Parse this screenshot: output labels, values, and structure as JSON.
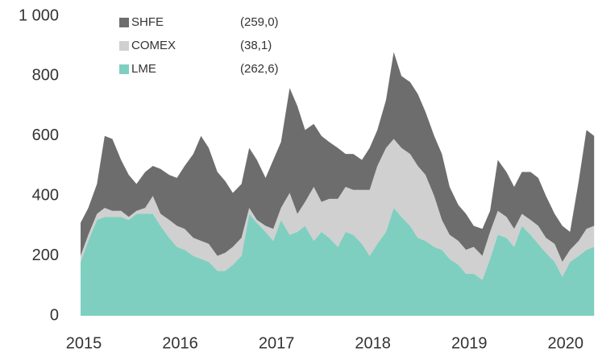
{
  "chart_data": {
    "type": "stacked_area",
    "x": [
      2015,
      2015.08,
      2015.17,
      2015.25,
      2015.33,
      2015.42,
      2015.5,
      2015.58,
      2015.67,
      2015.75,
      2015.83,
      2015.92,
      2016,
      2016.08,
      2016.17,
      2016.25,
      2016.33,
      2016.42,
      2016.5,
      2016.58,
      2016.67,
      2016.75,
      2016.83,
      2016.92,
      2017,
      2017.08,
      2017.17,
      2017.25,
      2017.33,
      2017.42,
      2017.5,
      2017.58,
      2017.67,
      2017.75,
      2017.83,
      2017.92,
      2018,
      2018.08,
      2018.17,
      2018.25,
      2018.33,
      2018.42,
      2018.5,
      2018.58,
      2018.67,
      2018.75,
      2018.83,
      2018.92,
      2019,
      2019.08,
      2019.17,
      2019.25,
      2019.33,
      2019.42,
      2019.5,
      2019.58,
      2019.67,
      2019.75,
      2019.83,
      2019.92,
      2020,
      2020.08,
      2020.17,
      2020.25,
      2020.33
    ],
    "xlim": [
      2015,
      2020.37
    ],
    "xticks": [
      2015,
      2016,
      2017,
      2018,
      2019,
      2020
    ],
    "ylim": [
      0,
      1000
    ],
    "yticks": [
      0,
      200,
      400,
      600,
      800,
      {
        "value": 1000,
        "label": "1 000"
      }
    ],
    "grid": false,
    "series": [
      {
        "name": "LME",
        "legend_value": "(262,6)",
        "color": "#7fcfc0",
        "values": [
          180,
          250,
          320,
          330,
          330,
          330,
          320,
          340,
          340,
          340,
          300,
          260,
          230,
          220,
          200,
          190,
          180,
          150,
          150,
          170,
          200,
          340,
          310,
          280,
          250,
          320,
          270,
          280,
          300,
          250,
          280,
          260,
          230,
          280,
          270,
          240,
          200,
          240,
          280,
          360,
          330,
          300,
          260,
          250,
          230,
          220,
          190,
          170,
          140,
          140,
          120,
          190,
          270,
          260,
          230,
          300,
          270,
          240,
          210,
          180,
          130,
          180,
          200,
          220,
          230
        ]
      },
      {
        "name": "COMEX",
        "legend_value": "(38,1)",
        "color": "#d0d0d0",
        "values": [
          20,
          20,
          20,
          30,
          20,
          20,
          10,
          10,
          20,
          60,
          40,
          60,
          70,
          70,
          60,
          60,
          60,
          50,
          60,
          60,
          60,
          20,
          10,
          20,
          40,
          40,
          140,
          60,
          80,
          180,
          100,
          130,
          160,
          150,
          150,
          180,
          220,
          260,
          280,
          230,
          230,
          240,
          240,
          220,
          170,
          100,
          80,
          80,
          80,
          90,
          80,
          90,
          80,
          70,
          60,
          40,
          50,
          60,
          50,
          60,
          50,
          40,
          50,
          70,
          70
        ]
      },
      {
        "name": "SHFE",
        "legend_value": "(259,0)",
        "color": "#6d6d6d",
        "values": [
          110,
          90,
          100,
          240,
          240,
          170,
          140,
          90,
          120,
          100,
          150,
          150,
          160,
          210,
          280,
          350,
          320,
          280,
          240,
          180,
          180,
          200,
          200,
          160,
          230,
          220,
          350,
          360,
          240,
          210,
          220,
          190,
          170,
          110,
          120,
          100,
          140,
          120,
          160,
          290,
          240,
          240,
          240,
          210,
          200,
          220,
          160,
          120,
          120,
          70,
          90,
          70,
          170,
          150,
          140,
          140,
          160,
          160,
          140,
          100,
          120,
          60,
          200,
          330,
          300
        ]
      }
    ]
  }
}
